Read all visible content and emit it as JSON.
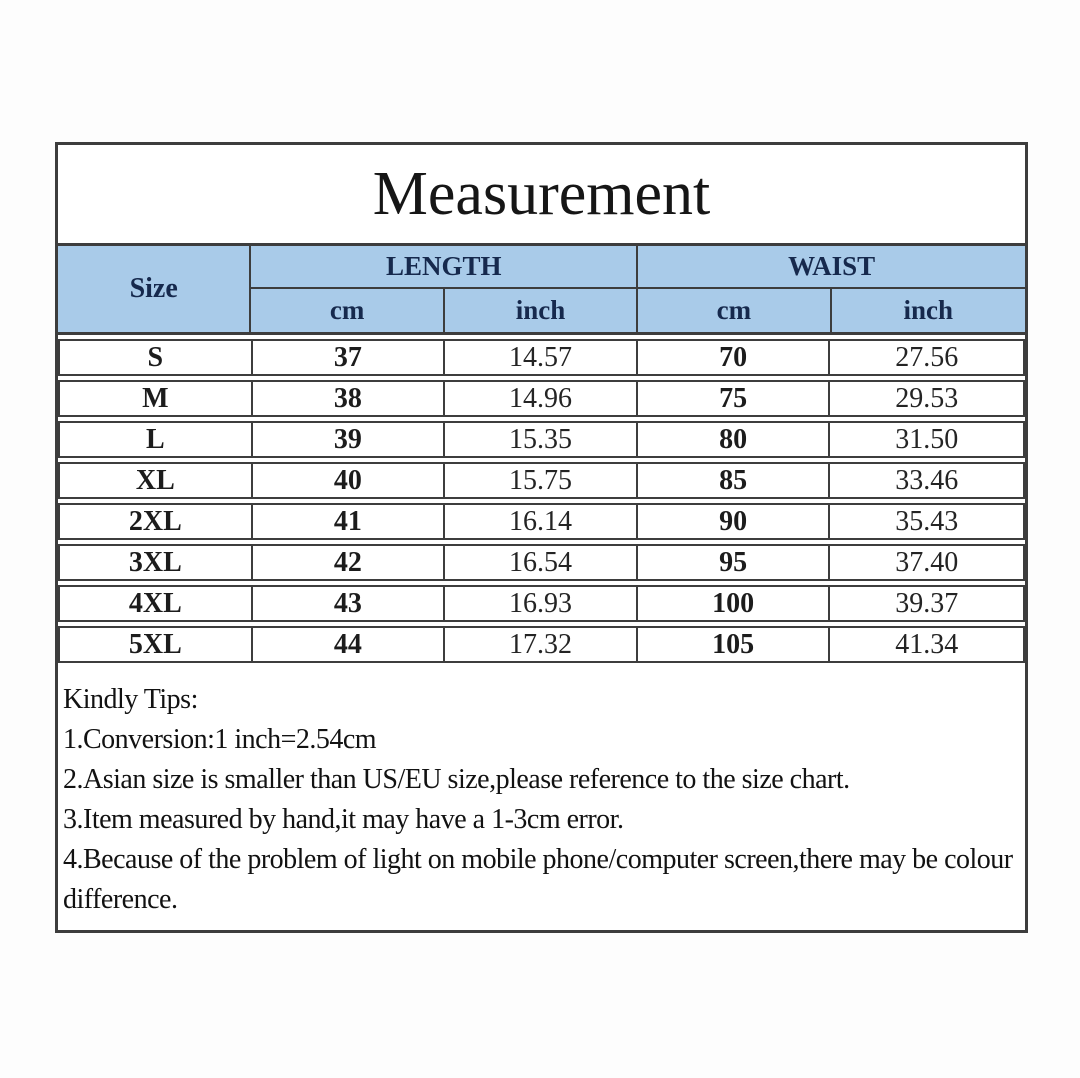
{
  "chart_data": {
    "type": "table",
    "title": "Measurement",
    "columns": [
      "Size",
      "LENGTH cm",
      "LENGTH inch",
      "WAIST cm",
      "WAIST inch"
    ],
    "rows": [
      [
        "S",
        "37",
        "14.57",
        "70",
        "27.56"
      ],
      [
        "M",
        "38",
        "14.96",
        "75",
        "29.53"
      ],
      [
        "L",
        "39",
        "15.35",
        "80",
        "31.50"
      ],
      [
        "XL",
        "40",
        "15.75",
        "85",
        "33.46"
      ],
      [
        "2XL",
        "41",
        "16.14",
        "90",
        "35.43"
      ],
      [
        "3XL",
        "42",
        "16.54",
        "95",
        "37.40"
      ],
      [
        "4XL",
        "43",
        "16.93",
        "100",
        "39.37"
      ],
      [
        "5XL",
        "44",
        "17.32",
        "105",
        "41.34"
      ]
    ]
  },
  "title": "Measurement",
  "table_header": {
    "size": "Size",
    "length_group": "LENGTH",
    "waist_group": "WAIST",
    "cm_1": "cm",
    "inch_1": "inch",
    "cm_2": "cm",
    "inch_2": "inch"
  },
  "tips": {
    "heading": "Kindly Tips:",
    "items": [
      "1.Conversion:1 inch=2.54cm",
      "2.Asian size is smaller than US/EU size,please reference to the size chart.",
      "3.Item measured by hand,it may have a 1-3cm error.",
      "4.Because of the problem of light on mobile phone/computer screen,there may be colour difference."
    ]
  },
  "colors": {
    "header_bg": "#a9cbe9",
    "header_text": "#16294d",
    "border": "#3d3d3d"
  }
}
